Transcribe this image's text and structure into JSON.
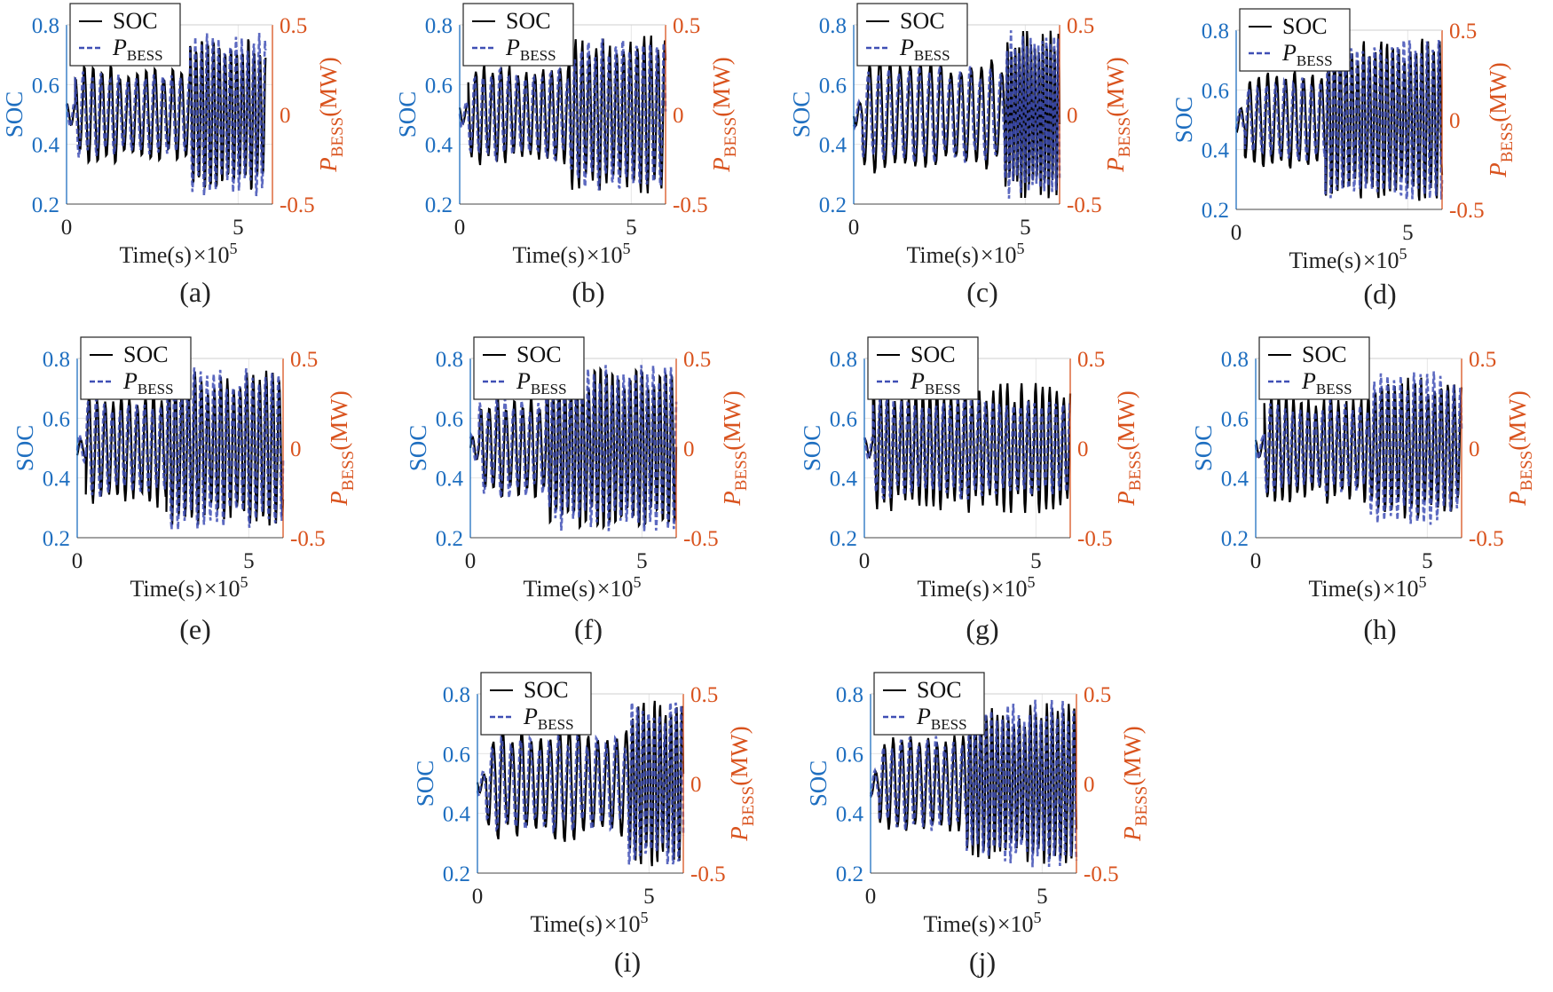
{
  "chart_data": [
    {
      "type": "line",
      "panel": "(a)",
      "title": "",
      "xlabel": "Time(s)",
      "x_exponent": "×10",
      "x_exponent_power": "5",
      "xticks": [
        "0",
        "5"
      ],
      "xlim": [
        0,
        6
      ],
      "ylabel_left": "SOC",
      "ylim_left": [
        0.2,
        0.8
      ],
      "yticks_left": [
        "0.2",
        "0.4",
        "0.6",
        "0.8"
      ],
      "ylabel_right_main": "P",
      "ylabel_right_sub": "BESS",
      "ylabel_right_unit": "(MW)",
      "ylim_right": [
        -0.5,
        0.5
      ],
      "yticks_right": [
        "-0.5",
        "0",
        "0.5"
      ],
      "legend": {
        "soc": "SOC",
        "p_main": "P",
        "p_sub": "BESS"
      },
      "colors": {
        "soc": "#000000",
        "p": "#3f4fb5",
        "left_axis": "#1f6fc0",
        "right_axis": "#d9531e"
      },
      "series": [
        {
          "name": "SOC",
          "x_range": [
            0,
            5.8
          ],
          "cycles": [
            {
              "from": 0,
              "to": 0.25,
              "n": 1,
              "amp": 0.04
            },
            {
              "from": 0.25,
              "to": 3.6,
              "n": 13,
              "amp": 0.17
            },
            {
              "from": 3.6,
              "to": 5.8,
              "n": 13,
              "amp": 0.28
            }
          ]
        },
        {
          "name": "P_BESS",
          "x_range": [
            0,
            5.8
          ],
          "cycles": [
            {
              "from": 0,
              "to": 0.25,
              "n": 1,
              "amp": 0.08
            },
            {
              "from": 0.25,
              "to": 3.6,
              "n": 13,
              "amp": 0.25
            },
            {
              "from": 3.6,
              "to": 5.8,
              "n": 13,
              "amp": 0.46
            }
          ]
        }
      ]
    },
    {
      "type": "line",
      "panel": "(b)",
      "title": "",
      "xlabel": "Time(s)",
      "x_exponent": "×10",
      "x_exponent_power": "5",
      "xticks": [
        "0",
        "5"
      ],
      "xlim": [
        0,
        6
      ],
      "ylabel_left": "SOC",
      "ylim_left": [
        0.2,
        0.8
      ],
      "yticks_left": [
        "0.2",
        "0.4",
        "0.6",
        "0.8"
      ],
      "ylabel_right_main": "P",
      "ylabel_right_sub": "BESS",
      "ylabel_right_unit": "(MW)",
      "ylim_right": [
        -0.5,
        0.5
      ],
      "yticks_right": [
        "-0.5",
        "0",
        "0.5"
      ],
      "legend": {
        "soc": "SOC",
        "p_main": "P",
        "p_sub": "BESS"
      },
      "colors": {
        "soc": "#000000",
        "p": "#3f4fb5",
        "left_axis": "#1f6fc0",
        "right_axis": "#d9531e"
      },
      "series": [
        {
          "name": "SOC",
          "x_range": [
            0,
            6
          ],
          "cycles": [
            {
              "from": 0,
              "to": 0.25,
              "n": 1,
              "amp": 0.04
            },
            {
              "from": 0.25,
              "to": 3.2,
              "n": 12,
              "amp": 0.18
            },
            {
              "from": 3.2,
              "to": 6,
              "n": 14,
              "amp": 0.27
            }
          ]
        },
        {
          "name": "P_BESS",
          "x_range": [
            0,
            6
          ],
          "cycles": [
            {
              "from": 0,
              "to": 0.25,
              "n": 1,
              "amp": 0.08
            },
            {
              "from": 0.25,
              "to": 3.2,
              "n": 12,
              "amp": 0.28
            },
            {
              "from": 3.2,
              "to": 6,
              "n": 14,
              "amp": 0.45
            }
          ]
        }
      ]
    },
    {
      "type": "line",
      "panel": "(c)",
      "title": "",
      "xlabel": "Time(s)",
      "x_exponent": "×10",
      "x_exponent_power": "5",
      "xticks": [
        "0",
        "5"
      ],
      "xlim": [
        0,
        6
      ],
      "ylabel_left": "SOC",
      "ylim_left": [
        0.2,
        0.8
      ],
      "yticks_left": [
        "0.2",
        "0.4",
        "0.6",
        "0.8"
      ],
      "ylabel_right_main": "P",
      "ylabel_right_sub": "BESS",
      "ylabel_right_unit": "(MW)",
      "ylim_right": [
        -0.5,
        0.5
      ],
      "yticks_right": [
        "-0.5",
        "0",
        "0.5"
      ],
      "legend": {
        "soc": "SOC",
        "p_main": "P",
        "p_sub": "BESS"
      },
      "colors": {
        "soc": "#000000",
        "p": "#3f4fb5",
        "left_axis": "#1f6fc0",
        "right_axis": "#d9531e"
      },
      "series": [
        {
          "name": "SOC",
          "x_range": [
            0,
            6
          ],
          "cycles": [
            {
              "from": 0,
              "to": 0.25,
              "n": 1,
              "amp": 0.04
            },
            {
              "from": 0.25,
              "to": 4.4,
              "n": 14,
              "amp": 0.2
            },
            {
              "from": 4.4,
              "to": 6,
              "n": 14,
              "amp": 0.29
            }
          ]
        },
        {
          "name": "P_BESS",
          "x_range": [
            0,
            6
          ],
          "cycles": [
            {
              "from": 0,
              "to": 0.25,
              "n": 1,
              "amp": 0.08
            },
            {
              "from": 0.25,
              "to": 4.4,
              "n": 14,
              "amp": 0.28
            },
            {
              "from": 4.4,
              "to": 6,
              "n": 14,
              "amp": 0.48
            }
          ]
        }
      ]
    },
    {
      "type": "line",
      "panel": "(d)",
      "title": "",
      "xlabel": "Time(s)",
      "x_exponent": "×10",
      "x_exponent_power": "5",
      "xticks": [
        "0",
        "5"
      ],
      "xlim": [
        0,
        6
      ],
      "ylabel_left": "SOC",
      "ylim_left": [
        0.2,
        0.8
      ],
      "yticks_left": [
        "0.2",
        "0.4",
        "0.6",
        "0.8"
      ],
      "ylabel_right_main": "P",
      "ylabel_right_sub": "BESS",
      "ylabel_right_unit": "(MW)",
      "ylim_right": [
        -0.5,
        0.5
      ],
      "yticks_right": [
        "-0.5",
        "0",
        "0.5"
      ],
      "legend": {
        "soc": "SOC",
        "p_main": "P",
        "p_sub": "BESS"
      },
      "colors": {
        "soc": "#000000",
        "p": "#3f4fb5",
        "left_axis": "#1f6fc0",
        "right_axis": "#d9531e"
      },
      "series": [
        {
          "name": "SOC",
          "x_range": [
            0,
            6
          ],
          "cycles": [
            {
              "from": 0,
              "to": 0.25,
              "n": 1,
              "amp": 0.04
            },
            {
              "from": 0.25,
              "to": 2.6,
              "n": 9,
              "amp": 0.17
            },
            {
              "from": 2.6,
              "to": 6,
              "n": 20,
              "amp": 0.28
            }
          ]
        },
        {
          "name": "P_BESS",
          "x_range": [
            0,
            6
          ],
          "cycles": [
            {
              "from": 0,
              "to": 0.25,
              "n": 1,
              "amp": 0.08
            },
            {
              "from": 0.25,
              "to": 2.6,
              "n": 9,
              "amp": 0.25
            },
            {
              "from": 2.6,
              "to": 6,
              "n": 20,
              "amp": 0.47
            }
          ]
        }
      ]
    },
    {
      "type": "line",
      "panel": "(e)",
      "title": "",
      "xlabel": "Time(s)",
      "x_exponent": "×10",
      "x_exponent_power": "5",
      "xticks": [
        "0",
        "5"
      ],
      "xlim": [
        0,
        6
      ],
      "ylabel_left": "SOC",
      "ylim_left": [
        0.2,
        0.8
      ],
      "yticks_left": [
        "0.2",
        "0.4",
        "0.6",
        "0.8"
      ],
      "ylabel_right_main": "P",
      "ylabel_right_sub": "BESS",
      "ylabel_right_unit": "(MW)",
      "ylim_right": [
        -0.5,
        0.5
      ],
      "yticks_right": [
        "-0.5",
        "0",
        "0.5"
      ],
      "legend": {
        "soc": "SOC",
        "p_main": "P",
        "p_sub": "BESS"
      },
      "colors": {
        "soc": "#000000",
        "p": "#3f4fb5",
        "left_axis": "#1f6fc0",
        "right_axis": "#d9531e"
      },
      "series": [
        {
          "name": "SOC",
          "x_range": [
            0,
            6
          ],
          "cycles": [
            {
              "from": 0,
              "to": 0.25,
              "n": 1,
              "amp": 0.04
            },
            {
              "from": 0.25,
              "to": 2.6,
              "n": 10,
              "amp": 0.2
            },
            {
              "from": 2.6,
              "to": 6,
              "n": 18,
              "amp": 0.26
            }
          ]
        },
        {
          "name": "P_BESS",
          "x_range": [
            0,
            6
          ],
          "cycles": [
            {
              "from": 0,
              "to": 0.25,
              "n": 1,
              "amp": 0.08
            },
            {
              "from": 0.25,
              "to": 2.6,
              "n": 10,
              "amp": 0.28
            },
            {
              "from": 2.6,
              "to": 6,
              "n": 18,
              "amp": 0.47
            }
          ]
        }
      ]
    },
    {
      "type": "line",
      "panel": "(f)",
      "title": "",
      "xlabel": "Time(s)",
      "x_exponent": "×10",
      "x_exponent_power": "5",
      "xticks": [
        "0",
        "5"
      ],
      "xlim": [
        0,
        6
      ],
      "ylabel_left": "SOC",
      "ylim_left": [
        0.2,
        0.8
      ],
      "yticks_left": [
        "0.2",
        "0.4",
        "0.6",
        "0.8"
      ],
      "ylabel_right_main": "P",
      "ylabel_right_sub": "BESS",
      "ylabel_right_unit": "(MW)",
      "ylim_right": [
        -0.5,
        0.5
      ],
      "yticks_right": [
        "-0.5",
        "0",
        "0.5"
      ],
      "legend": {
        "soc": "SOC",
        "p_main": "P",
        "p_sub": "BESS"
      },
      "colors": {
        "soc": "#000000",
        "p": "#3f4fb5",
        "left_axis": "#1f6fc0",
        "right_axis": "#d9531e"
      },
      "series": [
        {
          "name": "SOC",
          "x_range": [
            0,
            6
          ],
          "cycles": [
            {
              "from": 0,
              "to": 0.25,
              "n": 1,
              "amp": 0.04
            },
            {
              "from": 0.25,
              "to": 2.2,
              "n": 8,
              "amp": 0.18
            },
            {
              "from": 2.2,
              "to": 6,
              "n": 22,
              "amp": 0.28
            }
          ]
        },
        {
          "name": "P_BESS",
          "x_range": [
            0,
            6
          ],
          "cycles": [
            {
              "from": 0,
              "to": 0.25,
              "n": 1,
              "amp": 0.08
            },
            {
              "from": 0.25,
              "to": 2.2,
              "n": 8,
              "amp": 0.28
            },
            {
              "from": 2.2,
              "to": 6,
              "n": 22,
              "amp": 0.47
            }
          ]
        }
      ]
    },
    {
      "type": "line",
      "panel": "(g)",
      "title": "",
      "xlabel": "Time(s)",
      "x_exponent": "×10",
      "x_exponent_power": "5",
      "xticks": [
        "0",
        "5"
      ],
      "xlim": [
        0,
        6
      ],
      "ylabel_left": "SOC",
      "ylim_left": [
        0.2,
        0.8
      ],
      "yticks_left": [
        "0.2",
        "0.4",
        "0.6",
        "0.8"
      ],
      "ylabel_right_main": "P",
      "ylabel_right_sub": "BESS",
      "ylabel_right_unit": "(MW)",
      "ylim_right": [
        -0.5,
        0.5
      ],
      "yticks_right": [
        "-0.5",
        "0",
        "0.5"
      ],
      "legend": {
        "soc": "SOC",
        "p_main": "P",
        "p_sub": "BESS"
      },
      "colors": {
        "soc": "#000000",
        "p": "#3f4fb5",
        "left_axis": "#1f6fc0",
        "right_axis": "#d9531e"
      },
      "series": [
        {
          "name": "SOC",
          "x_range": [
            0,
            6
          ],
          "cycles": [
            {
              "from": 0,
              "to": 0.25,
              "n": 1,
              "amp": 0.04
            },
            {
              "from": 0.25,
              "to": 6,
              "n": 28,
              "amp": 0.22
            }
          ]
        },
        {
          "name": "P_BESS",
          "x_range": [
            0,
            6
          ],
          "cycles": [
            {
              "from": 0,
              "to": 0.25,
              "n": 1,
              "amp": 0.08
            },
            {
              "from": 0.25,
              "to": 6,
              "n": 28,
              "amp": 0.3
            }
          ]
        }
      ]
    },
    {
      "type": "line",
      "panel": "(h)",
      "title": "",
      "xlabel": "Time(s)",
      "x_exponent": "×10",
      "x_exponent_power": "5",
      "xticks": [
        "0",
        "5"
      ],
      "xlim": [
        0,
        6
      ],
      "ylabel_left": "SOC",
      "ylim_left": [
        0.2,
        0.8
      ],
      "yticks_left": [
        "0.2",
        "0.4",
        "0.6",
        "0.8"
      ],
      "ylabel_right_main": "P",
      "ylabel_right_sub": "BESS",
      "ylabel_right_unit": "(MW)",
      "ylim_right": [
        -0.5,
        0.5
      ],
      "yticks_right": [
        "-0.5",
        "0",
        "0.5"
      ],
      "legend": {
        "soc": "SOC",
        "p_main": "P",
        "p_sub": "BESS"
      },
      "colors": {
        "soc": "#000000",
        "p": "#3f4fb5",
        "left_axis": "#1f6fc0",
        "right_axis": "#d9531e"
      },
      "series": [
        {
          "name": "SOC",
          "x_range": [
            0,
            6
          ],
          "cycles": [
            {
              "from": 0,
              "to": 0.25,
              "n": 1,
              "amp": 0.04
            },
            {
              "from": 0.25,
              "to": 3.3,
              "n": 14,
              "amp": 0.19
            },
            {
              "from": 3.3,
              "to": 6,
              "n": 14,
              "amp": 0.24
            }
          ]
        },
        {
          "name": "P_BESS",
          "x_range": [
            0,
            6
          ],
          "cycles": [
            {
              "from": 0,
              "to": 0.25,
              "n": 1,
              "amp": 0.08
            },
            {
              "from": 0.25,
              "to": 3.3,
              "n": 14,
              "amp": 0.27
            },
            {
              "from": 3.3,
              "to": 6,
              "n": 14,
              "amp": 0.45
            }
          ]
        }
      ]
    },
    {
      "type": "line",
      "panel": "(i)",
      "title": "",
      "xlabel": "Time(s)",
      "x_exponent": "×10",
      "x_exponent_power": "5",
      "xticks": [
        "0",
        "5"
      ],
      "xlim": [
        0,
        6
      ],
      "ylabel_left": "SOC",
      "ylim_left": [
        0.2,
        0.8
      ],
      "yticks_left": [
        "0.2",
        "0.4",
        "0.6",
        "0.8"
      ],
      "ylabel_right_main": "P",
      "ylabel_right_sub": "BESS",
      "ylabel_right_unit": "(MW)",
      "ylim_right": [
        -0.5,
        0.5
      ],
      "yticks_right": [
        "-0.5",
        "0",
        "0.5"
      ],
      "legend": {
        "soc": "SOC",
        "p_main": "P",
        "p_sub": "BESS"
      },
      "colors": {
        "soc": "#000000",
        "p": "#3f4fb5",
        "left_axis": "#1f6fc0",
        "right_axis": "#d9531e"
      },
      "series": [
        {
          "name": "SOC",
          "x_range": [
            0,
            6
          ],
          "cycles": [
            {
              "from": 0,
              "to": 0.25,
              "n": 1,
              "amp": 0.04
            },
            {
              "from": 0.25,
              "to": 4.4,
              "n": 15,
              "amp": 0.2
            },
            {
              "from": 4.4,
              "to": 6,
              "n": 10,
              "amp": 0.29
            }
          ]
        },
        {
          "name": "P_BESS",
          "x_range": [
            0,
            6
          ],
          "cycles": [
            {
              "from": 0,
              "to": 0.25,
              "n": 1,
              "amp": 0.08
            },
            {
              "from": 0.25,
              "to": 4.4,
              "n": 15,
              "amp": 0.28
            },
            {
              "from": 4.4,
              "to": 6,
              "n": 10,
              "amp": 0.47
            }
          ]
        }
      ]
    },
    {
      "type": "line",
      "panel": "(j)",
      "title": "",
      "xlabel": "Time(s)",
      "x_exponent": "×10",
      "x_exponent_power": "5",
      "xticks": [
        "0",
        "5"
      ],
      "xlim": [
        0,
        6
      ],
      "ylabel_left": "SOC",
      "ylim_left": [
        0.2,
        0.8
      ],
      "yticks_left": [
        "0.2",
        "0.4",
        "0.6",
        "0.8"
      ],
      "ylabel_right_main": "P",
      "ylabel_right_sub": "BESS",
      "ylabel_right_unit": "(MW)",
      "ylim_right": [
        -0.5,
        0.5
      ],
      "yticks_right": [
        "-0.5",
        "0",
        "0.5"
      ],
      "legend": {
        "soc": "SOC",
        "p_main": "P",
        "p_sub": "BESS"
      },
      "colors": {
        "soc": "#000000",
        "p": "#3f4fb5",
        "left_axis": "#1f6fc0",
        "right_axis": "#d9531e"
      },
      "series": [
        {
          "name": "SOC",
          "x_range": [
            0,
            6
          ],
          "cycles": [
            {
              "from": 0,
              "to": 0.25,
              "n": 1,
              "amp": 0.04
            },
            {
              "from": 0.25,
              "to": 2.8,
              "n": 10,
              "amp": 0.17
            },
            {
              "from": 2.8,
              "to": 6,
              "n": 20,
              "amp": 0.27
            }
          ]
        },
        {
          "name": "P_BESS",
          "x_range": [
            0,
            6
          ],
          "cycles": [
            {
              "from": 0,
              "to": 0.25,
              "n": 1,
              "amp": 0.08
            },
            {
              "from": 0.25,
              "to": 2.8,
              "n": 10,
              "amp": 0.27
            },
            {
              "from": 2.8,
              "to": 6,
              "n": 20,
              "amp": 0.47
            }
          ]
        }
      ]
    }
  ]
}
